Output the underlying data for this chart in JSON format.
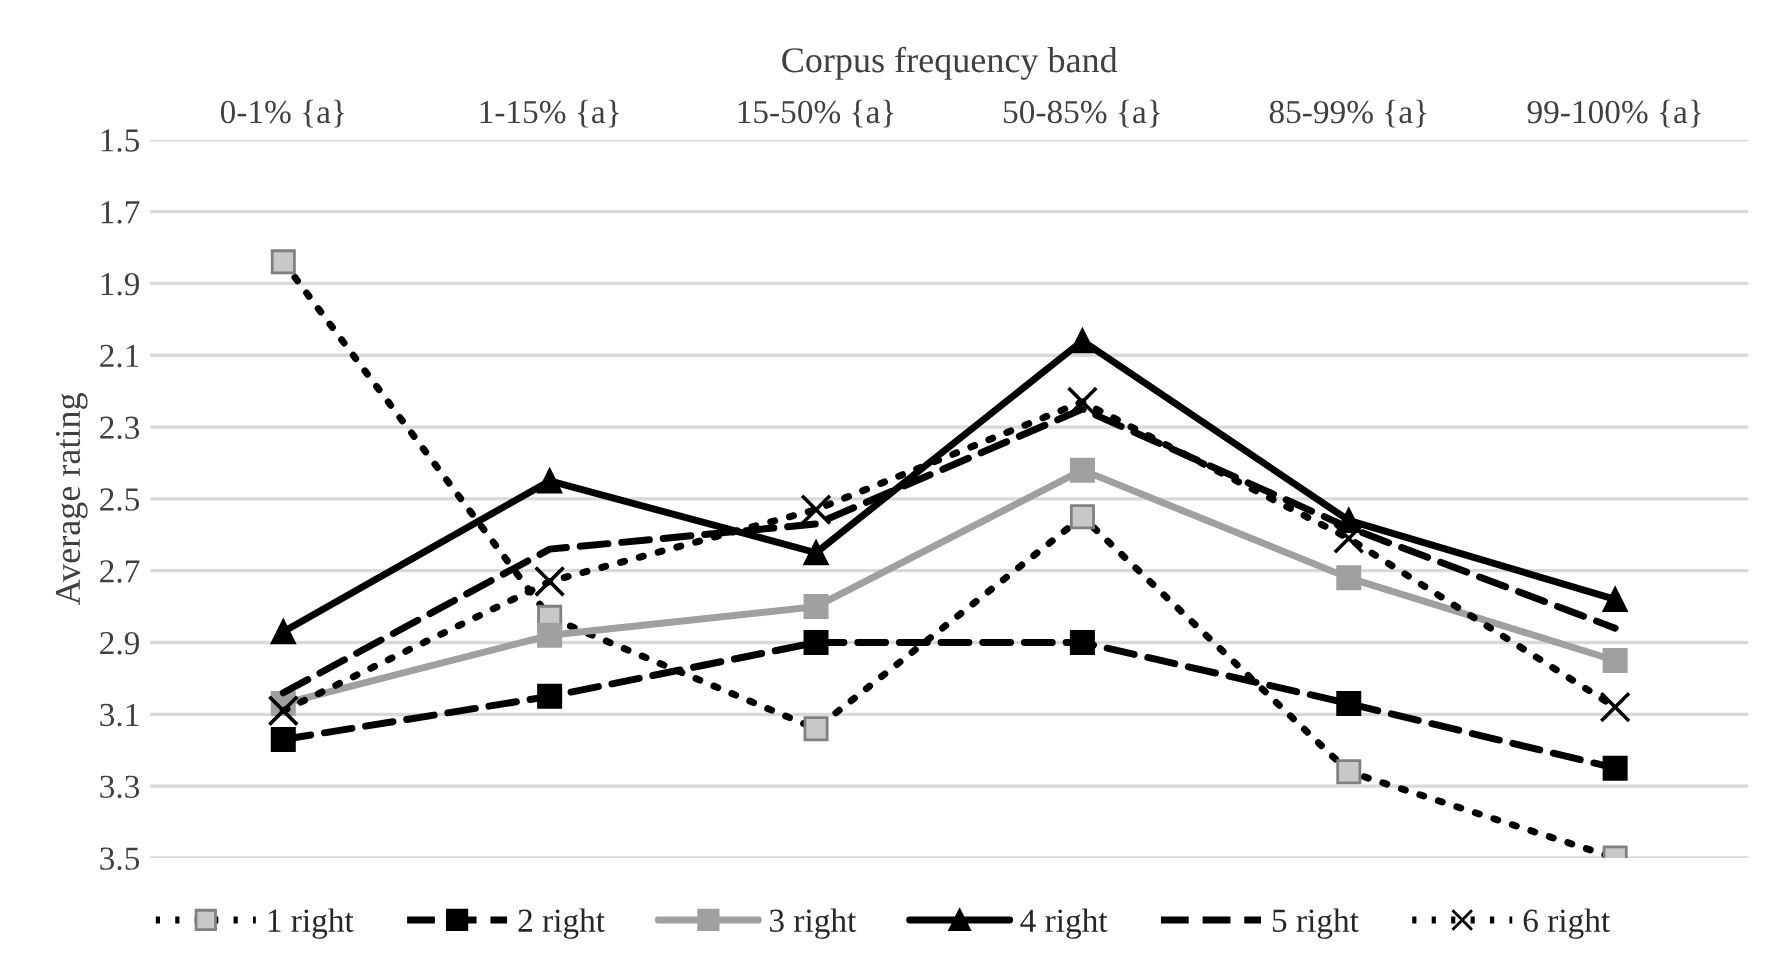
{
  "chart_data": {
    "type": "line",
    "xlabel": "Corpus frequency band",
    "ylabel": "Average rating",
    "categories": [
      "0-1% {a}",
      "1-15% {a}",
      "15-50% {a}",
      "50-85% {a}",
      "85-99% {a}",
      "99-100% {a}"
    ],
    "ylim": [
      3.5,
      1.5
    ],
    "yticks": [
      {
        "value": 1.5,
        "label": "1.5"
      },
      {
        "value": 1.7,
        "label": "1.7"
      },
      {
        "value": 1.9,
        "label": "1.9"
      },
      {
        "value": 2.1,
        "label": "2.1"
      },
      {
        "value": 2.3,
        "label": "2.3"
      },
      {
        "value": 2.5,
        "label": "2.5"
      },
      {
        "value": 2.7,
        "label": "2.7"
      },
      {
        "value": 2.9,
        "label": "2.9"
      },
      {
        "value": 3.1,
        "label": "3.1"
      },
      {
        "value": 3.3,
        "label": "3.3"
      },
      {
        "value": 3.5,
        "label": "3.5"
      }
    ],
    "grid": "y",
    "legend": "bottom",
    "series": [
      {
        "name": "1 right",
        "color": "#000000",
        "colors": [
          "#c8c8c8",
          "#c8c8c8",
          "#c8c8c8",
          "#c8c8c8",
          "#c8c8c8",
          "#c8c8c8"
        ],
        "marker": "square",
        "line_style": "dotted",
        "values": [
          1.84,
          2.83,
          3.14,
          2.55,
          3.26,
          3.5
        ]
      },
      {
        "name": "2 right",
        "color": "#000000",
        "marker": "square",
        "line_style": "dashed",
        "values": [
          3.17,
          3.05,
          2.9,
          2.9,
          3.07,
          3.25
        ]
      },
      {
        "name": "3 right",
        "color": "#a0a0a0",
        "marker": "square",
        "line_style": "solid",
        "values": [
          3.07,
          2.88,
          2.8,
          2.42,
          2.72,
          2.95
        ]
      },
      {
        "name": "4 right",
        "color": "#000000",
        "marker": "triangle",
        "line_style": "solid",
        "values": [
          2.87,
          2.45,
          2.65,
          2.06,
          2.56,
          2.78
        ]
      },
      {
        "name": "5 right",
        "color": "#000000",
        "marker": "none",
        "line_style": "dashed",
        "values": [
          3.04,
          2.64,
          2.57,
          2.25,
          2.58,
          2.86
        ]
      },
      {
        "name": "6 right",
        "color": "#000000",
        "marker": "cross",
        "line_style": "dotted",
        "values": [
          3.09,
          2.73,
          2.53,
          2.23,
          2.61,
          3.08
        ]
      }
    ]
  }
}
